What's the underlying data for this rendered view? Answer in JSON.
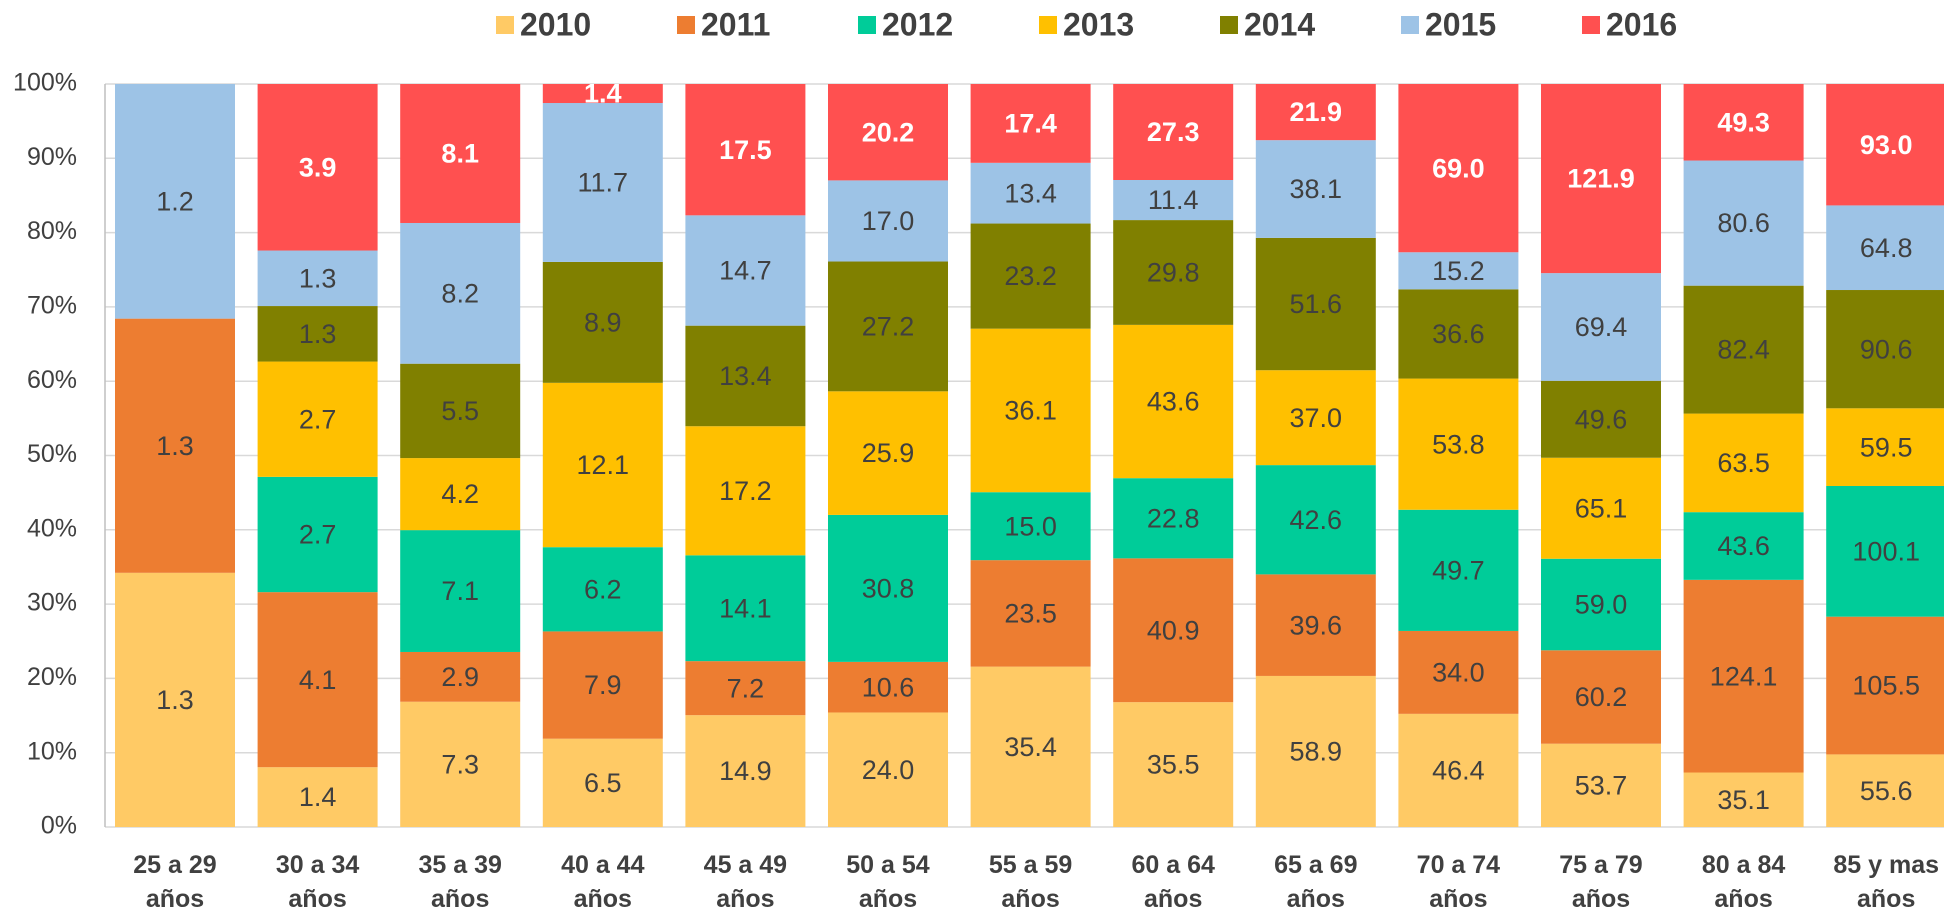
{
  "chart_data": {
    "type": "stacked_percent_bar",
    "categories": [
      "25 a 29 años",
      "30 a 34 años",
      "35 a 39 años",
      "40 a 44 años",
      "45 a 49 años",
      "50 a 54 años",
      "55 a 59 años",
      "60 a 64 años",
      "65 a 69 años",
      "70 a 74 años",
      "75 a 79 años",
      "80 a 84 años",
      "85 y mas años"
    ],
    "series": [
      {
        "name": "2010",
        "color": "#FFCA65",
        "values": [
          1.3,
          1.4,
          7.3,
          6.5,
          14.9,
          24.0,
          35.4,
          35.5,
          58.9,
          46.4,
          53.7,
          35.1,
          55.6
        ],
        "value_labels": [
          "1.3",
          "1.4",
          "7.3",
          "6.5",
          "14.9",
          "24.0",
          "35.4",
          "35.5",
          "58.9",
          "46.4",
          "53.7",
          "35.1",
          "55.6"
        ]
      },
      {
        "name": "2011",
        "color": "#ED7D31",
        "values": [
          1.3,
          4.1,
          2.9,
          7.9,
          7.2,
          10.6,
          23.5,
          40.9,
          39.6,
          34.0,
          60.2,
          124.1,
          105.5
        ],
        "value_labels": [
          "1.3",
          "4.1",
          "2.9",
          "7.9",
          "7.2",
          "10.6",
          "23.5",
          "40.9",
          "39.6",
          "34.0",
          "60.2",
          "124.1",
          "105.5"
        ]
      },
      {
        "name": "2012",
        "color": "#00CC99",
        "values": [
          null,
          2.7,
          7.1,
          6.2,
          14.1,
          30.8,
          15.0,
          22.8,
          42.6,
          49.7,
          59.0,
          43.6,
          100.1
        ],
        "value_labels": [
          null,
          "2.7",
          "7.1",
          "6.2",
          "14.1",
          "30.8",
          "15.0",
          "22.8",
          "42.6",
          "49.7",
          "59.0",
          "43.6",
          "100.1"
        ]
      },
      {
        "name": "2013",
        "color": "#FFC000",
        "values": [
          null,
          2.7,
          4.2,
          12.1,
          17.2,
          25.9,
          36.1,
          43.6,
          37.0,
          53.8,
          65.1,
          63.5,
          59.5
        ],
        "value_labels": [
          null,
          "2.7",
          "4.2",
          "12.1",
          "17.2",
          "25.9",
          "36.1",
          "43.6",
          "37.0",
          "53.8",
          "65.1",
          "63.5",
          "59.5"
        ]
      },
      {
        "name": "2014",
        "color": "#808000",
        "values": [
          null,
          1.3,
          5.5,
          8.9,
          13.4,
          27.2,
          23.2,
          29.8,
          51.6,
          36.6,
          49.6,
          82.4,
          90.6
        ],
        "value_labels": [
          null,
          "1.3",
          "5.5",
          "8.9",
          "13.4",
          "27.2",
          "23.2",
          "29.8",
          "51.6",
          "36.6",
          "49.6",
          "82.4",
          "90.6"
        ]
      },
      {
        "name": "2015",
        "color": "#9DC3E6",
        "values": [
          1.2,
          1.3,
          8.2,
          11.7,
          14.7,
          17.0,
          13.4,
          11.4,
          38.1,
          15.2,
          69.4,
          80.6,
          64.8
        ],
        "value_labels": [
          "1.2",
          "1.3",
          "8.2",
          "11.7",
          "14.7",
          "17.0",
          "13.4",
          "11.4",
          "38.1",
          "15.2",
          "69.4",
          "80.6",
          "64.8"
        ]
      },
      {
        "name": "2016",
        "color": "#FF5050",
        "values": [
          null,
          3.9,
          8.1,
          1.4,
          17.5,
          20.2,
          17.4,
          27.3,
          21.9,
          69.0,
          121.9,
          49.3,
          93.0
        ],
        "value_labels": [
          null,
          "3.9",
          "8.1",
          "1.4",
          "17.5",
          "20.2",
          "17.4",
          "27.3",
          "21.9",
          "69.0",
          "121.9",
          "49.3",
          "93.0"
        ]
      }
    ],
    "ylim": [
      0,
      100
    ],
    "yticks": [
      {
        "value": 0,
        "label": "0%"
      },
      {
        "value": 10,
        "label": "10%"
      },
      {
        "value": 20,
        "label": "20%"
      },
      {
        "value": 30,
        "label": "30%"
      },
      {
        "value": 40,
        "label": "40%"
      },
      {
        "value": 50,
        "label": "50%"
      },
      {
        "value": 60,
        "label": "60%"
      },
      {
        "value": 70,
        "label": "70%"
      },
      {
        "value": 80,
        "label": "80%"
      },
      {
        "value": 90,
        "label": "90%"
      },
      {
        "value": 100,
        "label": "100%"
      }
    ],
    "grid": true,
    "legend": "top"
  }
}
